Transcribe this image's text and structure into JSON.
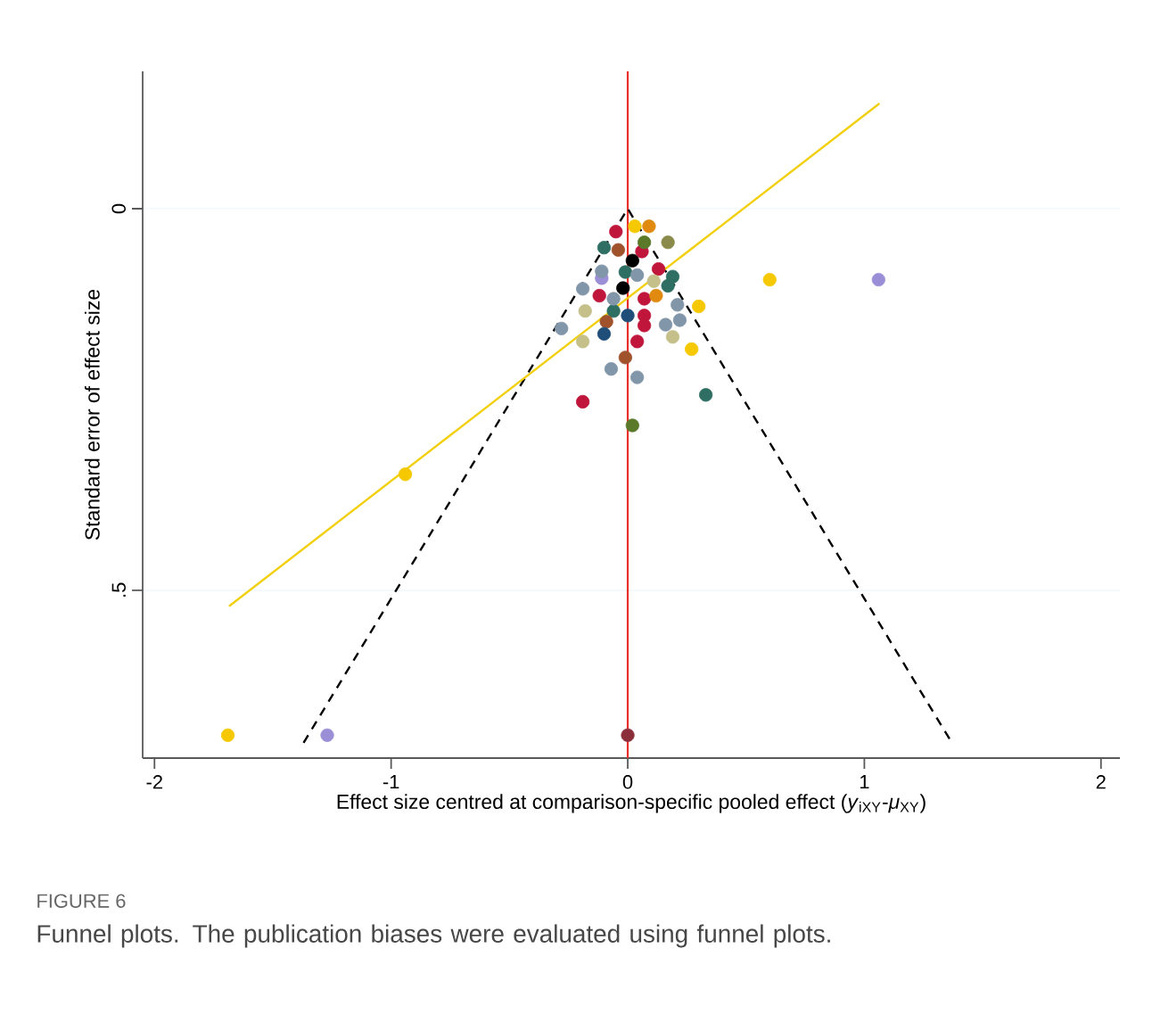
{
  "chart_data": {
    "type": "scatter",
    "xlabel": "Effect size centred at comparison-specific pooled effect (*y*$_{iXY}$-*μ*$_{XY}$)",
    "ylabel": "Standard error of effect size",
    "annotations": [
      "FIGURE 6",
      "Funnel plots. The publication biases were evaluated using funnel plots."
    ],
    "xlim": [
      -2.05,
      2.08
    ],
    "ylim": [
      0.72,
      -0.18
    ],
    "xticks": [
      -2,
      -1,
      0,
      1,
      2
    ],
    "yticks": [
      0,
      {
        "value": 0.5,
        "label": ".5"
      }
    ],
    "grid": "y",
    "marker": "circle",
    "ref_lines": [
      {
        "axis": "x",
        "value": 0,
        "color": "#e8302a"
      }
    ],
    "series": [
      {
        "type": "line",
        "color": "#000000",
        "line_style": "dashed",
        "marker": "none",
        "x": [
          -1.37,
          0,
          1.37
        ],
        "values": [
          0.7,
          0,
          0.7
        ]
      },
      {
        "type": "line",
        "color": "#f2d00f",
        "line_style": "solid",
        "marker": "none",
        "x": [
          -1.685,
          1.064
        ],
        "values": [
          0.521,
          -0.138
        ]
      },
      {
        "color": "#f5c800",
        "x": [
          -1.69,
          0.6,
          -0.94,
          0.27,
          0.3,
          0.03
        ],
        "values": [
          0.69,
          0.093,
          0.348,
          0.184,
          0.128,
          0.023
        ]
      },
      {
        "color": "#9a8fd6",
        "x": [
          -1.27,
          1.06,
          -0.11
        ],
        "values": [
          0.69,
          0.093,
          0.091
        ]
      },
      {
        "color": "#8b2e3a",
        "x": [
          0
        ],
        "values": [
          0.69
        ]
      },
      {
        "color": "#c0163c",
        "x": [
          -0.19,
          0.04,
          -0.05,
          0.06,
          0.13,
          -0.12,
          0.07,
          0.07,
          0.07
        ],
        "values": [
          0.253,
          0.174,
          0.03,
          0.056,
          0.079,
          0.114,
          0.118,
          0.14,
          0.153
        ]
      },
      {
        "color": "#2f6f63",
        "x": [
          0.33,
          -0.1,
          -0.01,
          0.19,
          0.17,
          -0.06
        ],
        "values": [
          0.244,
          0.051,
          0.083,
          0.089,
          0.101,
          0.134
        ]
      },
      {
        "color": "#5a7a2a",
        "x": [
          0.02,
          0.07
        ],
        "values": [
          0.284,
          0.044
        ]
      },
      {
        "color": "#8196a8",
        "x": [
          -0.07,
          0.04,
          -0.28,
          0.16,
          0.22,
          -0.11,
          0.04,
          -0.19,
          -0.06,
          0.21
        ],
        "values": [
          0.21,
          0.221,
          0.157,
          0.152,
          0.146,
          0.082,
          0.087,
          0.105,
          0.118,
          0.126
        ]
      },
      {
        "color": "#a0522d",
        "x": [
          -0.01,
          -0.04,
          -0.09
        ],
        "values": [
          0.195,
          0.054,
          0.148
        ]
      },
      {
        "color": "#c5c08a",
        "x": [
          -0.19,
          0.19,
          -0.18,
          0.11
        ],
        "values": [
          0.174,
          0.168,
          0.134,
          0.095
        ]
      },
      {
        "color": "#1f4e79",
        "x": [
          -0.1,
          0.0
        ],
        "values": [
          0.164,
          0.14
        ]
      },
      {
        "color": "#000000",
        "x": [
          0.02,
          -0.02
        ],
        "values": [
          0.068,
          0.104
        ]
      },
      {
        "color": "#e08a10",
        "x": [
          0.09,
          0.12
        ],
        "values": [
          0.023,
          0.114
        ]
      },
      {
        "color": "#8a8a4a",
        "x": [
          0.17
        ],
        "values": [
          0.044
        ]
      }
    ]
  }
}
